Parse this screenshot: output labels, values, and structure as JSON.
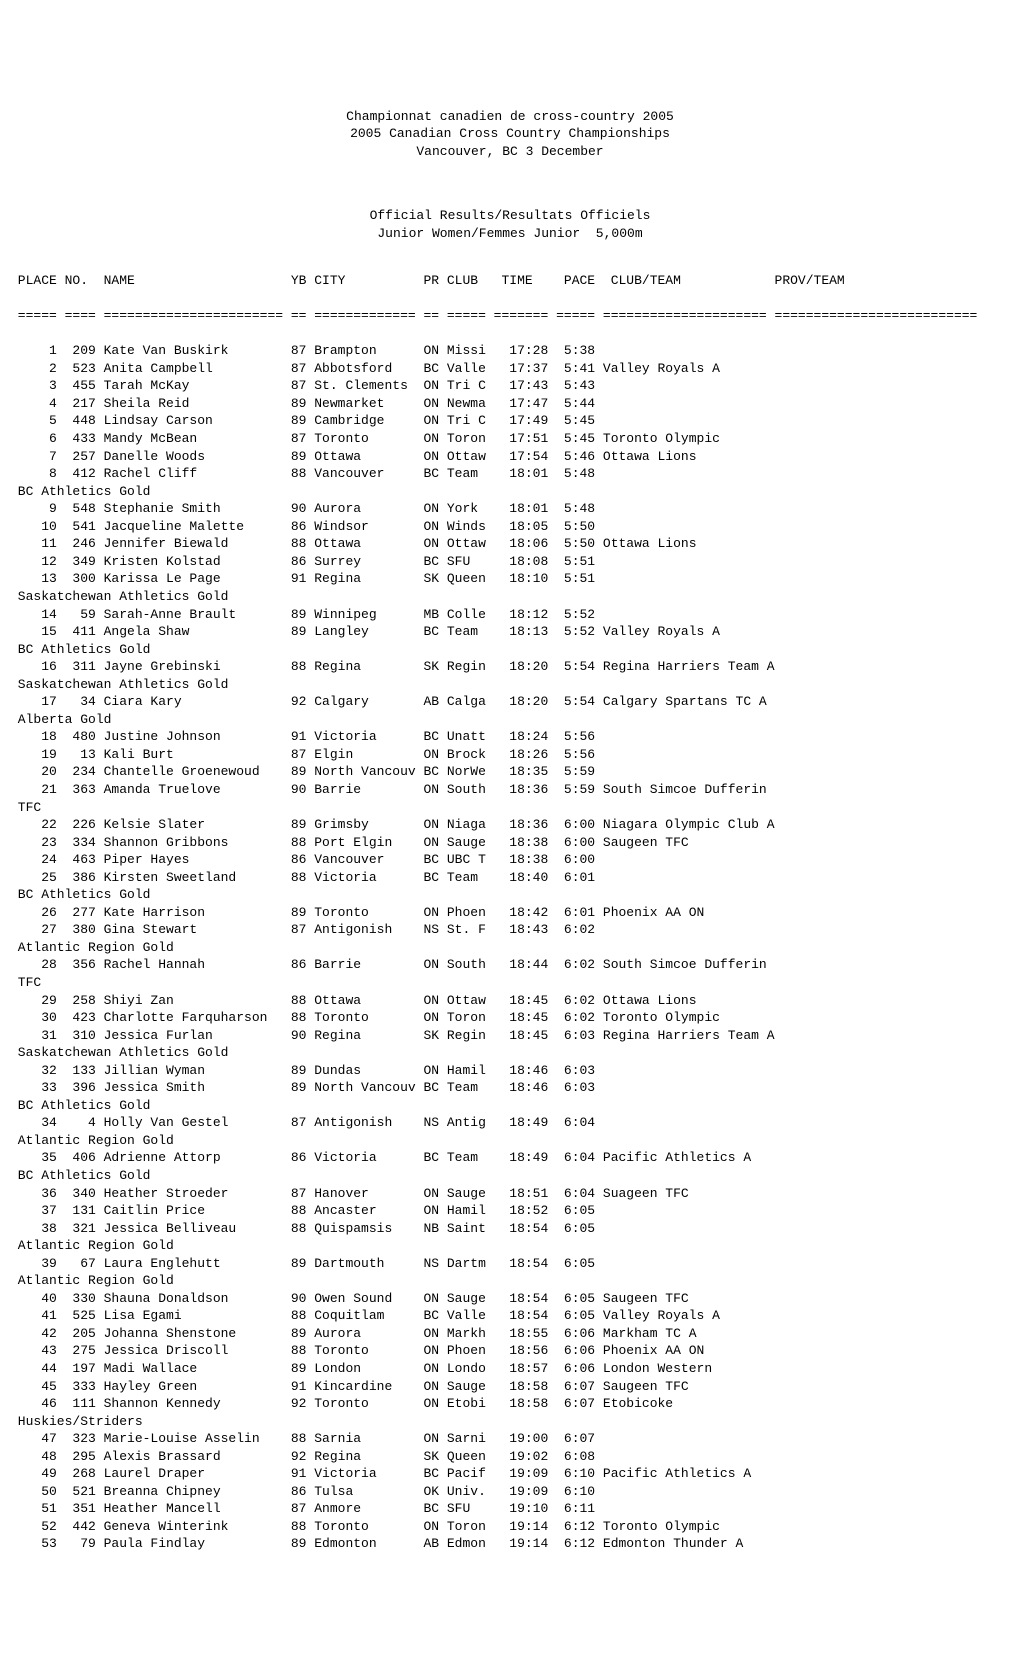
{
  "header": {
    "title1": "Championnat canadien de cross-country 2005",
    "title2": "2005 Canadian Cross Country Championships",
    "title3": "Vancouver, BC 3 December",
    "sub1": "Official Results/Resultats Officiels",
    "sub2": "Junior Women/Femmes Junior  5,000m"
  },
  "col_header": " PLACE NO.  NAME                    YB CITY          PR CLUB   TIME    PACE  CLUB/TEAM            PROV/TEAM",
  "sep1": " ===== ==== ======================= == ============= == ===== ======= ===== ===================== ==========================",
  "rows": [
    "     1  209 Kate Van Buskirk        87 Brampton      ON Missi   17:28  5:38",
    "     2  523 Anita Campbell          87 Abbotsford    BC Valle   17:37  5:41 Valley Royals A",
    "     3  455 Tarah McKay             87 St. Clements  ON Tri C   17:43  5:43",
    "     4  217 Sheila Reid             89 Newmarket     ON Newma   17:47  5:44",
    "     5  448 Lindsay Carson          89 Cambridge     ON Tri C   17:49  5:45",
    "     6  433 Mandy McBean            87 Toronto       ON Toron   17:51  5:45 Toronto Olympic",
    "     7  257 Danelle Woods           89 Ottawa        ON Ottaw   17:54  5:46 Ottawa Lions",
    "     8  412 Rachel Cliff            88 Vancouver     BC Team    18:01  5:48",
    " BC Athletics Gold",
    "     9  548 Stephanie Smith         90 Aurora        ON York    18:01  5:48",
    "    10  541 Jacqueline Malette      86 Windsor       ON Winds   18:05  5:50",
    "    11  246 Jennifer Biewald        88 Ottawa        ON Ottaw   18:06  5:50 Ottawa Lions",
    "    12  349 Kristen Kolstad         86 Surrey        BC SFU     18:08  5:51",
    "    13  300 Karissa Le Page         91 Regina        SK Queen   18:10  5:51",
    " Saskatchewan Athletics Gold",
    "    14   59 Sarah-Anne Brault       89 Winnipeg      MB Colle   18:12  5:52",
    "    15  411 Angela Shaw             89 Langley       BC Team    18:13  5:52 Valley Royals A",
    " BC Athletics Gold",
    "    16  311 Jayne Grebinski         88 Regina        SK Regin   18:20  5:54 Regina Harriers Team A",
    " Saskatchewan Athletics Gold",
    "    17   34 Ciara Kary              92 Calgary       AB Calga   18:20  5:54 Calgary Spartans TC A",
    " Alberta Gold",
    "    18  480 Justine Johnson         91 Victoria      BC Unatt   18:24  5:56",
    "    19   13 Kali Burt               87 Elgin         ON Brock   18:26  5:56",
    "    20  234 Chantelle Groenewoud    89 North Vancouv BC NorWe   18:35  5:59",
    "    21  363 Amanda Truelove         90 Barrie        ON South   18:36  5:59 South Simcoe Dufferin",
    " TFC",
    "    22  226 Kelsie Slater           89 Grimsby       ON Niaga   18:36  6:00 Niagara Olympic Club A",
    "    23  334 Shannon Gribbons        88 Port Elgin    ON Sauge   18:38  6:00 Saugeen TFC",
    "    24  463 Piper Hayes             86 Vancouver     BC UBC T   18:38  6:00",
    "    25  386 Kirsten Sweetland       88 Victoria      BC Team    18:40  6:01",
    " BC Athletics Gold",
    "    26  277 Kate Harrison           89 Toronto       ON Phoen   18:42  6:01 Phoenix AA ON",
    "    27  380 Gina Stewart            87 Antigonish    NS St. F   18:43  6:02",
    " Atlantic Region Gold",
    "    28  356 Rachel Hannah           86 Barrie        ON South   18:44  6:02 South Simcoe Dufferin",
    " TFC",
    "    29  258 Shiyi Zan               88 Ottawa        ON Ottaw   18:45  6:02 Ottawa Lions",
    "    30  423 Charlotte Farquharson   88 Toronto       ON Toron   18:45  6:02 Toronto Olympic",
    "    31  310 Jessica Furlan          90 Regina        SK Regin   18:45  6:03 Regina Harriers Team A",
    " Saskatchewan Athletics Gold",
    "    32  133 Jillian Wyman           89 Dundas        ON Hamil   18:46  6:03",
    "    33  396 Jessica Smith           89 North Vancouv BC Team    18:46  6:03",
    " BC Athletics Gold",
    "    34    4 Holly Van Gestel        87 Antigonish    NS Antig   18:49  6:04",
    " Atlantic Region Gold",
    "    35  406 Adrienne Attorp         86 Victoria      BC Team    18:49  6:04 Pacific Athletics A",
    " BC Athletics Gold",
    "    36  340 Heather Stroeder        87 Hanover       ON Sauge   18:51  6:04 Suageen TFC",
    "    37  131 Caitlin Price           88 Ancaster      ON Hamil   18:52  6:05",
    "    38  321 Jessica Belliveau       88 Quispamsis    NB Saint   18:54  6:05",
    " Atlantic Region Gold",
    "    39   67 Laura Englehutt         89 Dartmouth     NS Dartm   18:54  6:05",
    " Atlantic Region Gold",
    "    40  330 Shauna Donaldson        90 Owen Sound    ON Sauge   18:54  6:05 Saugeen TFC",
    "    41  525 Lisa Egami              88 Coquitlam     BC Valle   18:54  6:05 Valley Royals A",
    "    42  205 Johanna Shenstone       89 Aurora        ON Markh   18:55  6:06 Markham TC A",
    "    43  275 Jessica Driscoll        88 Toronto       ON Phoen   18:56  6:06 Phoenix AA ON",
    "    44  197 Madi Wallace            89 London        ON Londo   18:57  6:06 London Western",
    "    45  333 Hayley Green            91 Kincardine    ON Sauge   18:58  6:07 Saugeen TFC",
    "    46  111 Shannon Kennedy         92 Toronto       ON Etobi   18:58  6:07 Etobicoke",
    " Huskies/Striders",
    "    47  323 Marie-Louise Asselin    88 Sarnia        ON Sarni   19:00  6:07",
    "    48  295 Alexis Brassard         92 Regina        SK Queen   19:02  6:08",
    "    49  268 Laurel Draper           91 Victoria      BC Pacif   19:09  6:10 Pacific Athletics A",
    "    50  521 Breanna Chipney         86 Tulsa         OK Univ.   19:09  6:10",
    "    51  351 Heather Mancell         87 Anmore        BC SFU     19:10  6:11",
    "    52  442 Geneva Winterink        88 Toronto       ON Toron   19:14  6:12 Toronto Olympic",
    "    53   79 Paula Findlay           89 Edmonton      AB Edmon   19:14  6:12 Edmonton Thunder A"
  ]
}
